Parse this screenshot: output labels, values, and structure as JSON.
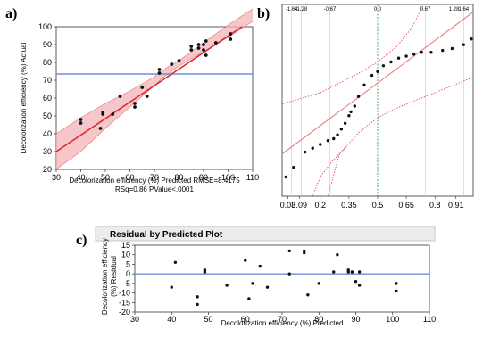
{
  "colors": {
    "fit_line": "#d32f2f",
    "confidence_fill": "#f4b3b8",
    "mean_line": "#6f8fd9",
    "zero_line": "#6f8fd9",
    "qq_line": "#e87d7d",
    "qq_band": "#d9506a",
    "median_line": "#3aa655",
    "points": "#111111"
  },
  "chart_data": [
    {
      "id": "a",
      "panel_label": "a)",
      "type": "scatter",
      "xlabel": "Decolorization efficiency (%) Predicted RMSE=8.4175",
      "xlabel2": "RSq=0.86 PValue<.0001",
      "ylabel": "Decolorization efficiency (%) Actual",
      "xlim": [
        30,
        110
      ],
      "ylim": [
        20,
        100
      ],
      "xticks": [
        30,
        40,
        50,
        60,
        70,
        80,
        90,
        100,
        110
      ],
      "yticks": [
        20,
        30,
        40,
        50,
        60,
        70,
        80,
        90,
        100
      ],
      "mean_y": 73.5,
      "fit_line": {
        "x": [
          30,
          110
        ],
        "y": [
          30,
          104
        ]
      },
      "confidence_band": {
        "x": [
          30,
          40,
          50,
          60,
          65,
          70,
          73,
          76,
          80,
          90,
          100,
          110
        ],
        "lower": [
          20,
          30,
          43,
          55,
          61,
          67,
          71,
          74,
          78,
          86,
          94,
          103
        ],
        "upper": [
          40,
          49,
          57,
          64,
          68,
          72,
          75,
          78,
          81,
          91,
          101,
          110
        ]
      },
      "points": {
        "x": [
          40,
          40,
          48,
          49,
          49,
          53,
          56,
          62,
          62,
          65,
          67,
          72,
          72,
          77,
          80,
          85,
          85,
          88,
          88,
          90,
          90,
          91,
          91,
          95,
          101,
          101
        ],
        "y": [
          48,
          46,
          43,
          52,
          51,
          51,
          61,
          57,
          55,
          66,
          61,
          74,
          76,
          79,
          81,
          87,
          89,
          90,
          88,
          87,
          90,
          84,
          92,
          91,
          96,
          93
        ]
      }
    },
    {
      "id": "b",
      "panel_label": "b)",
      "type": "scatter",
      "top_ticks": [
        "-1.64",
        "-1.28",
        "-0.67",
        "0.0",
        "0.67",
        "1.28",
        "1.64"
      ],
      "bottom_ticks": [
        "0.03",
        "0.09",
        "0.2",
        "0.35",
        "0.5",
        "0.65",
        "0.8",
        "0.91"
      ],
      "points": {
        "x": [
          0.02,
          0.06,
          0.12,
          0.16,
          0.2,
          0.24,
          0.27,
          0.29,
          0.31,
          0.33,
          0.35,
          0.36,
          0.38,
          0.4,
          0.43,
          0.47,
          0.5,
          0.53,
          0.57,
          0.61,
          0.65,
          0.69,
          0.73,
          0.78,
          0.84,
          0.89,
          0.95,
          0.99
        ],
        "y": [
          0.1,
          0.15,
          0.23,
          0.25,
          0.27,
          0.29,
          0.3,
          0.32,
          0.35,
          0.38,
          0.42,
          0.44,
          0.47,
          0.52,
          0.58,
          0.63,
          0.65,
          0.68,
          0.7,
          0.72,
          0.73,
          0.74,
          0.75,
          0.75,
          0.76,
          0.77,
          0.79,
          0.82
        ]
      }
    },
    {
      "id": "c",
      "panel_label": "c)",
      "type": "scatter",
      "title": "Residual by Predicted Plot",
      "xlabel": "Decolorization efficiency (%) Predicted",
      "ylabel": "Decolorization efficiency (%) Residual",
      "xlim": [
        30,
        110
      ],
      "ylim": [
        -20,
        15
      ],
      "xticks": [
        30,
        40,
        50,
        60,
        70,
        80,
        90,
        100,
        110
      ],
      "yticks": [
        15,
        10,
        5,
        0,
        -5,
        -10,
        -15,
        -20
      ],
      "points": {
        "x": [
          40,
          41,
          47,
          47,
          49,
          49,
          55,
          60,
          61,
          62,
          64,
          66,
          72,
          72,
          76,
          76,
          77,
          80,
          84,
          85,
          88,
          88,
          89,
          90,
          91,
          91,
          101,
          101
        ],
        "y": [
          -7,
          6,
          -12,
          -16,
          2,
          1,
          -6,
          7,
          -13,
          -5,
          4,
          -7,
          12,
          0,
          12,
          11,
          -11,
          -5,
          1,
          10,
          1,
          2,
          1,
          -4,
          -6,
          1,
          -5,
          -9
        ]
      }
    }
  ]
}
